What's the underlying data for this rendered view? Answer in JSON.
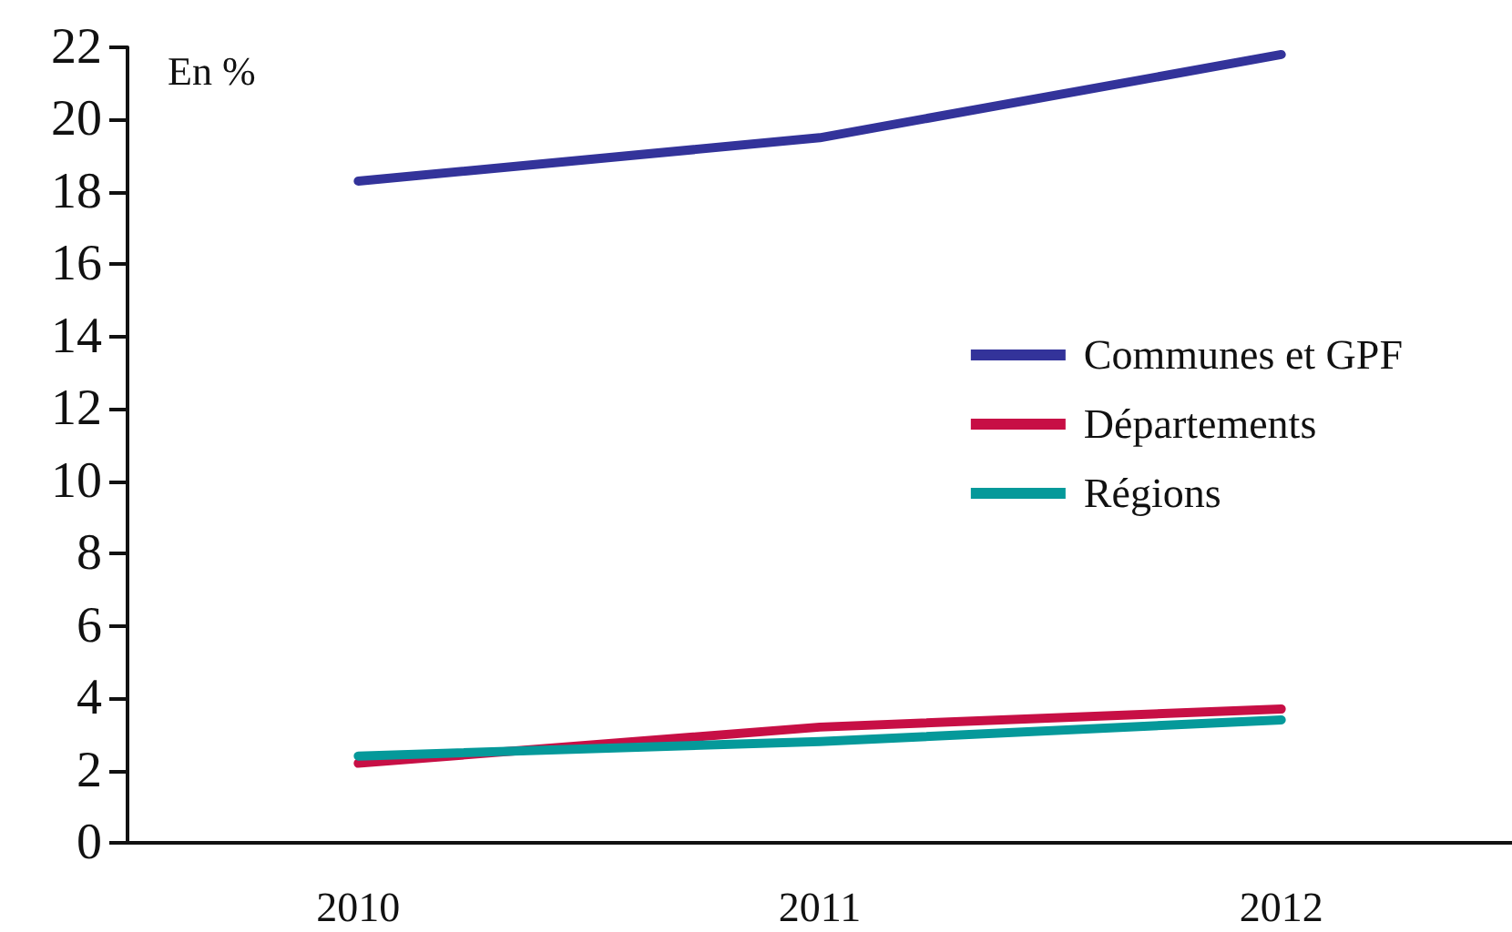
{
  "chart_data": {
    "type": "line",
    "ylabel": "En %",
    "categories": [
      "2010",
      "2011",
      "2012"
    ],
    "series": [
      {
        "name": "Communes et GPF",
        "color": "#33339a",
        "values": [
          18.3,
          19.5,
          21.8
        ]
      },
      {
        "name": "Départements",
        "color": "#c70f45",
        "values": [
          2.2,
          3.2,
          3.7
        ]
      },
      {
        "name": "Régions",
        "color": "#05999a",
        "values": [
          2.4,
          2.8,
          3.4
        ]
      }
    ],
    "ylim": [
      0,
      22
    ],
    "yticks": [
      0,
      2,
      4,
      6,
      8,
      10,
      12,
      14,
      16,
      18,
      20,
      22
    ],
    "grid": false,
    "legend": "right",
    "marker": "none",
    "line_style": "solid"
  }
}
